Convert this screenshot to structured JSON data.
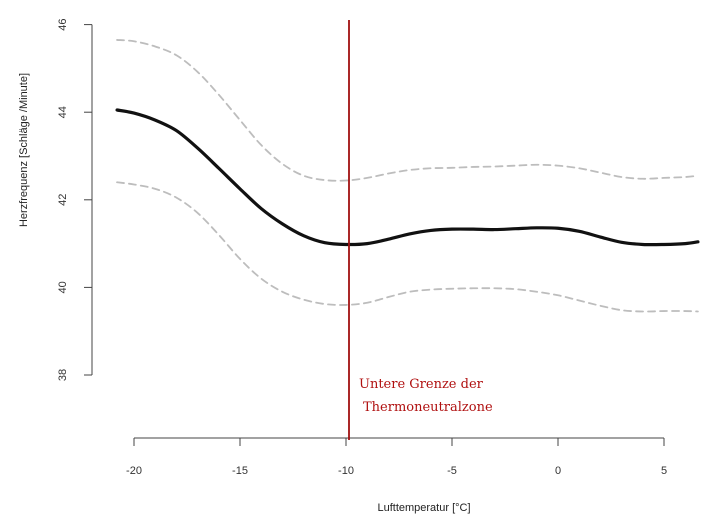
{
  "chart_data": {
    "type": "line",
    "title": "",
    "xlabel": "Lufttemperatur [°C]",
    "ylabel": "Herzfrequenz [Schläge /Minute]",
    "xlim": [
      -21,
      6.6
    ],
    "ylim": [
      38,
      46
    ],
    "x_ticks": [
      -20,
      -15,
      -10,
      -5,
      0,
      5
    ],
    "x_tick_labels": [
      "-20",
      "-15",
      "-10",
      "-5",
      "0",
      "5"
    ],
    "y_ticks": [
      38,
      40,
      42,
      44,
      46
    ],
    "y_tick_labels": [
      "38",
      "40",
      "42",
      "44",
      "46"
    ],
    "grid": false,
    "series": [
      {
        "style": "solid-thick",
        "color": "#111111",
        "x": [
          -20.8,
          -20,
          -19,
          -18,
          -17,
          -16,
          -15,
          -14,
          -13,
          -12,
          -11,
          -10,
          -9,
          -8,
          -7,
          -6,
          -5,
          -4,
          -3,
          -2,
          -1,
          0,
          1,
          2,
          3,
          4,
          5,
          6,
          6.6
        ],
        "y": [
          44.05,
          43.98,
          43.82,
          43.58,
          43.18,
          42.72,
          42.25,
          41.8,
          41.45,
          41.18,
          41.02,
          40.98,
          41.0,
          41.1,
          41.22,
          41.3,
          41.33,
          41.33,
          41.32,
          41.34,
          41.36,
          41.35,
          41.28,
          41.15,
          41.03,
          40.98,
          40.98,
          41.0,
          41.04
        ]
      },
      {
        "style": "dashed",
        "color": "#bdbdbd",
        "x": [
          -20.8,
          -20,
          -19,
          -18,
          -17,
          -16,
          -15,
          -14,
          -13,
          -12,
          -11,
          -10,
          -9,
          -8,
          -7,
          -6,
          -5,
          -4,
          -3,
          -2,
          -1,
          0,
          1,
          2,
          3,
          4,
          5,
          6,
          6.6
        ],
        "y": [
          45.65,
          45.62,
          45.5,
          45.3,
          44.92,
          44.4,
          43.82,
          43.25,
          42.82,
          42.55,
          42.45,
          42.44,
          42.5,
          42.6,
          42.68,
          42.72,
          42.73,
          42.75,
          42.76,
          42.78,
          42.8,
          42.78,
          42.72,
          42.62,
          42.52,
          42.48,
          42.5,
          42.52,
          42.55
        ]
      },
      {
        "style": "dashed",
        "color": "#bdbdbd",
        "x": [
          -20.8,
          -20,
          -19,
          -18,
          -17,
          -16,
          -15,
          -14,
          -13,
          -12,
          -11,
          -10,
          -9,
          -8,
          -7,
          -6,
          -5,
          -4,
          -3,
          -2,
          -1,
          0,
          1,
          2,
          3,
          4,
          5,
          6,
          6.6
        ],
        "y": [
          42.4,
          42.35,
          42.25,
          42.05,
          41.7,
          41.2,
          40.65,
          40.2,
          39.9,
          39.72,
          39.62,
          39.6,
          39.65,
          39.78,
          39.9,
          39.95,
          39.97,
          39.98,
          39.98,
          39.96,
          39.9,
          39.82,
          39.7,
          39.58,
          39.48,
          39.45,
          39.46,
          39.46,
          39.45
        ]
      }
    ],
    "marker_line": {
      "x": -10,
      "color": "#a01010",
      "label_line1": "Untere Grenze der",
      "label_line2": "Thermoneutralzone"
    }
  }
}
